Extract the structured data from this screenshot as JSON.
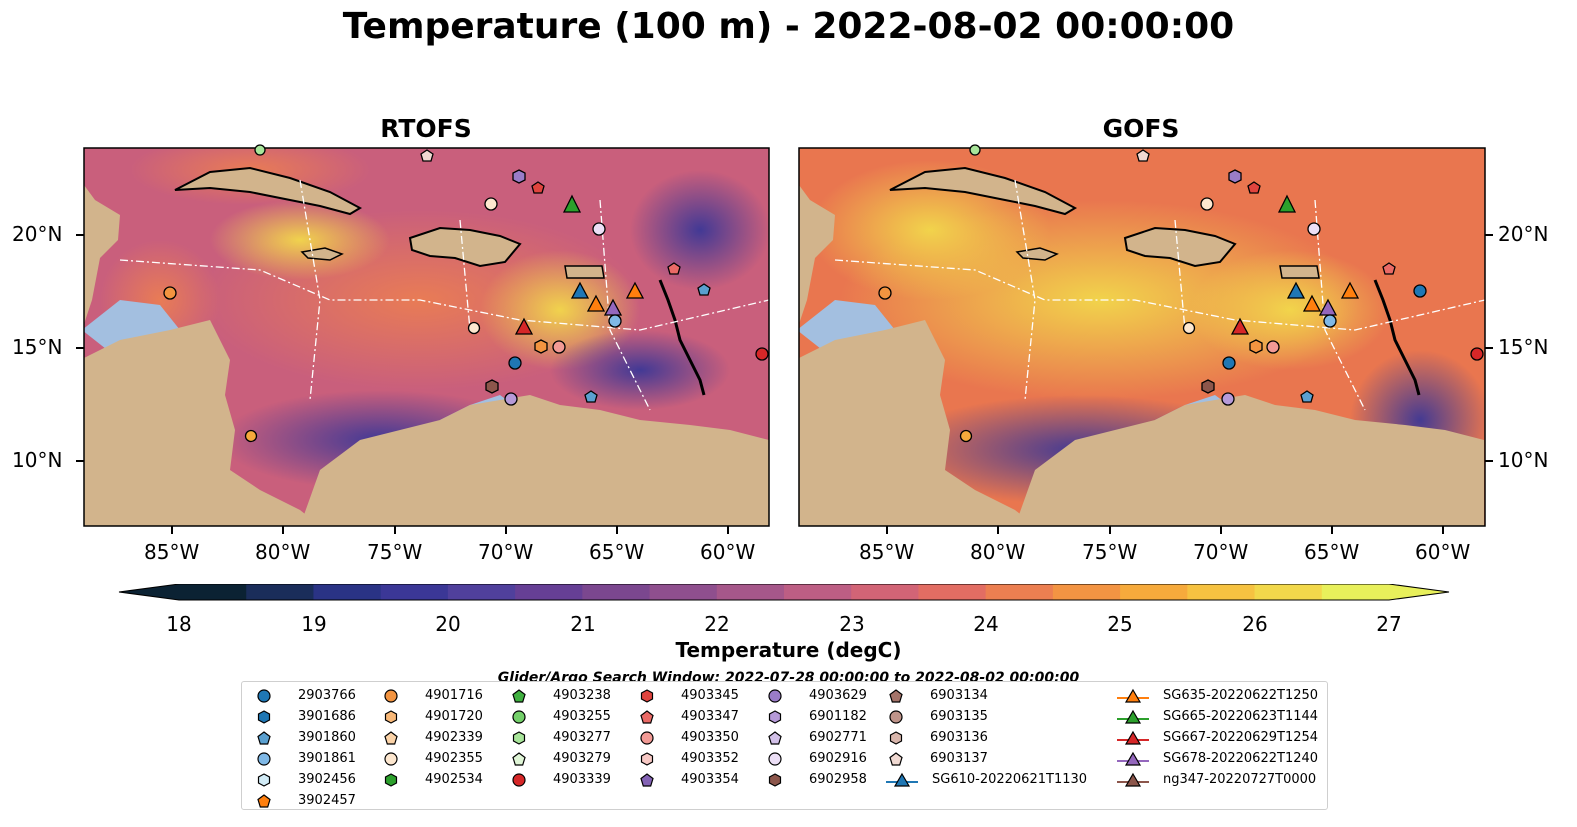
{
  "title": "Temperature (100 m) - 2022-08-02 00:00:00",
  "panels": [
    {
      "title": "RTOFS"
    },
    {
      "title": "GOFS"
    }
  ],
  "x_ticks": [
    "85°W",
    "80°W",
    "75°W",
    "70°W",
    "65°W",
    "60°W"
  ],
  "y_ticks": [
    "20°N",
    "15°N",
    "10°N"
  ],
  "colorbar": {
    "label": "Temperature (degC)",
    "ticks": [
      "18",
      "19",
      "20",
      "21",
      "22",
      "23",
      "24",
      "25",
      "26",
      "27"
    ],
    "colors": [
      "#0b2233",
      "#1a2d5a",
      "#2a3385",
      "#3b3796",
      "#50409c",
      "#663f95",
      "#7b478f",
      "#8f4f8e",
      "#a6578a",
      "#bd5e84",
      "#d26476",
      "#e26d63",
      "#ec7f51",
      "#f39443",
      "#f6aa3c",
      "#f6c241",
      "#f2d84b",
      "#e8f05b"
    ]
  },
  "search_window": "Glider/Argo Search Window: 2022-07-28 00:00:00 to 2022-08-02 00:00:00",
  "legend": {
    "columns": [
      [
        {
          "label": "2903766",
          "marker": "circle",
          "color": "#1f77b4"
        },
        {
          "label": "3901686",
          "marker": "hexagon",
          "color": "#1f77b4"
        },
        {
          "label": "3901860",
          "marker": "pentagon",
          "color": "#5aa0d0"
        },
        {
          "label": "3901861",
          "marker": "circle",
          "color": "#7fb8e6"
        },
        {
          "label": "3902456",
          "marker": "hexagon",
          "color": "#d2ecf7"
        },
        {
          "label": "3902457",
          "marker": "pentagon",
          "color": "#ff7f0e"
        }
      ],
      [
        {
          "label": "4901716",
          "marker": "circle",
          "color": "#f39440"
        },
        {
          "label": "4901720",
          "marker": "hexagon",
          "color": "#f8b878"
        },
        {
          "label": "4902339",
          "marker": "pentagon",
          "color": "#fbd3a8"
        },
        {
          "label": "4902355",
          "marker": "circle",
          "color": "#fde7cf"
        },
        {
          "label": "4902534",
          "marker": "hexagon",
          "color": "#2ca02c"
        }
      ],
      [
        {
          "label": "4903238",
          "marker": "pentagon",
          "color": "#40b040"
        },
        {
          "label": "4903255",
          "marker": "circle",
          "color": "#74d06a"
        },
        {
          "label": "4903277",
          "marker": "hexagon",
          "color": "#a8e59a"
        },
        {
          "label": "4903279",
          "marker": "pentagon",
          "color": "#dff5d6"
        },
        {
          "label": "4903339",
          "marker": "circle",
          "color": "#d62728"
        }
      ],
      [
        {
          "label": "4903345",
          "marker": "hexagon",
          "color": "#e0443e"
        },
        {
          "label": "4903347",
          "marker": "pentagon",
          "color": "#ea6a66"
        },
        {
          "label": "4903350",
          "marker": "circle",
          "color": "#f29a95"
        },
        {
          "label": "4903352",
          "marker": "hexagon",
          "color": "#f7c8c4"
        },
        {
          "label": "4903354",
          "marker": "pentagon",
          "color": "#8463b5"
        }
      ],
      [
        {
          "label": "4903629",
          "marker": "circle",
          "color": "#9a7cc8"
        },
        {
          "label": "6901182",
          "marker": "hexagon",
          "color": "#b69ad8"
        },
        {
          "label": "6902771",
          "marker": "pentagon",
          "color": "#d2c0e8"
        },
        {
          "label": "6902916",
          "marker": "circle",
          "color": "#ecdff6"
        },
        {
          "label": "6902958",
          "marker": "hexagon",
          "color": "#8c564b"
        }
      ],
      [
        {
          "label": "6903134",
          "marker": "pentagon",
          "color": "#a5746a"
        },
        {
          "label": "6903135",
          "marker": "circle",
          "color": "#bf948a"
        },
        {
          "label": "6903136",
          "marker": "hexagon",
          "color": "#d9b6ac"
        },
        {
          "label": "6903137",
          "marker": "pentagon",
          "color": "#f0d9d2"
        },
        {
          "label": "SG610-20220621T1130",
          "marker": "triangle-line",
          "color": "#1f77b4"
        }
      ],
      [
        {
          "label": "SG635-20220622T1250",
          "marker": "triangle-line",
          "color": "#ff7f0e"
        },
        {
          "label": "SG665-20220623T1144",
          "marker": "triangle-line",
          "color": "#2ca02c"
        },
        {
          "label": "SG667-20220629T1254",
          "marker": "triangle-line",
          "color": "#d62728"
        },
        {
          "label": "SG678-20220622T1240",
          "marker": "triangle-line",
          "color": "#9467bd"
        },
        {
          "label": "ng347-20220727T0000",
          "marker": "triangle-line",
          "color": "#8c564b"
        }
      ]
    ]
  }
}
